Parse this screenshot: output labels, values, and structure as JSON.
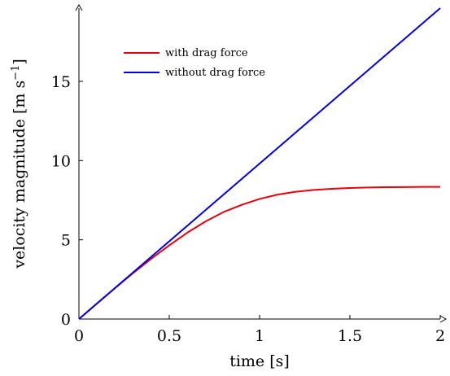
{
  "chart_data": {
    "type": "line",
    "xlabel": "time [s]",
    "ylabel_text": "velocity magnitude [m s",
    "ylabel_sup": "−1",
    "ylabel_close": "]",
    "xlim": [
      0,
      2
    ],
    "ylim": [
      0,
      19.62
    ],
    "x_ticks": [
      {
        "value": 0,
        "label": "0"
      },
      {
        "value": 0.5,
        "label": "0.5"
      },
      {
        "value": 1,
        "label": "1"
      },
      {
        "value": 1.5,
        "label": "1.5"
      },
      {
        "value": 2,
        "label": "2"
      }
    ],
    "y_ticks": [
      {
        "value": 0,
        "label": "0"
      },
      {
        "value": 5,
        "label": "5"
      },
      {
        "value": 10,
        "label": "10"
      },
      {
        "value": 15,
        "label": "15"
      }
    ],
    "grid": false,
    "legend_position": "top-left",
    "series": [
      {
        "name": "with drag force",
        "color": "#e8000b",
        "x": [
          0,
          0.1,
          0.2,
          0.3,
          0.4,
          0.5,
          0.6,
          0.7,
          0.8,
          0.9,
          1.0,
          1.1,
          1.2,
          1.3,
          1.4,
          1.5,
          1.6,
          1.7,
          1.8,
          1.9,
          2.0
        ],
        "y": [
          0,
          0.98,
          1.95,
          2.9,
          3.8,
          4.65,
          5.45,
          6.15,
          6.75,
          7.2,
          7.58,
          7.85,
          8.03,
          8.15,
          8.22,
          8.27,
          8.3,
          8.32,
          8.33,
          8.34,
          8.34
        ]
      },
      {
        "name": "without drag force",
        "color": "#0000e6",
        "x": [
          0,
          2
        ],
        "y": [
          0,
          19.62
        ]
      }
    ]
  }
}
